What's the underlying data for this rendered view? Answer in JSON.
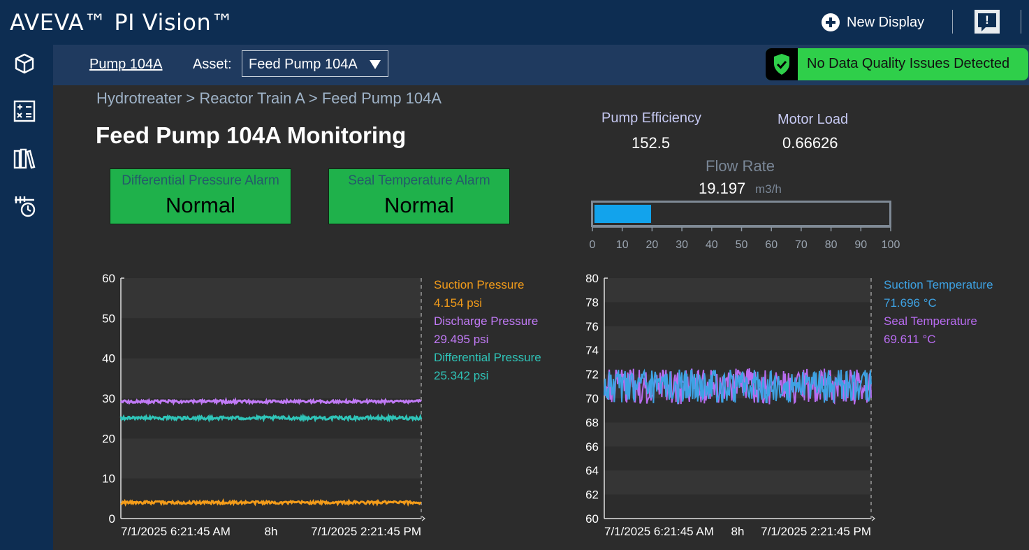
{
  "app": {
    "brand": "AVEVA™ PI Vision™",
    "new_display": "New Display"
  },
  "sidebar": {
    "items": [
      "cube-icon",
      "calculator-icon",
      "library-icon",
      "event-frame-icon"
    ]
  },
  "subbar": {
    "tab": "Pump 104A",
    "asset_label": "Asset:",
    "asset_value": "Feed Pump 104A",
    "data_quality": "No Data Quality Issues Detected"
  },
  "display": {
    "breadcrumb": "Hydrotreater > Reactor Train A > Feed Pump 104A",
    "title": "Feed Pump 104A Monitoring",
    "alarms": [
      {
        "label": "Differential Pressure Alarm",
        "value": "Normal"
      },
      {
        "label": "Seal Temperature Alarm",
        "value": "Normal"
      }
    ],
    "kpis": {
      "efficiency_label": "Pump Efficiency",
      "efficiency_value": "152.5",
      "motor_label": "Motor Load",
      "motor_value": "0.66626",
      "flow_label": "Flow Rate",
      "flow_value": "19.197",
      "flow_unit": "m3/h"
    },
    "flow_gauge": {
      "value": 19.197,
      "min": 0,
      "max": 100,
      "ticks": [
        "0",
        "10",
        "20",
        "30",
        "40",
        "50",
        "60",
        "70",
        "80",
        "90",
        "100"
      ]
    },
    "trend1": {
      "legend": [
        {
          "name": "Suction Pressure",
          "value": "4.154 psi",
          "color": "#f39c1a"
        },
        {
          "name": "Discharge Pressure",
          "value": "29.495 psi",
          "color": "#c07af5"
        },
        {
          "name": "Differential Pressure",
          "value": "25.342 psi",
          "color": "#2fc4b8"
        }
      ],
      "time_start": "7/1/2025 6:21:45 AM",
      "duration": "8h",
      "time_end": "7/1/2025 2:21:45 PM"
    },
    "trend2": {
      "legend": [
        {
          "name": "Suction Temperature",
          "value": "71.696 °C",
          "color": "#3ea2e3"
        },
        {
          "name": "Seal Temperature",
          "value": "69.611 °C",
          "color": "#b86cf0"
        }
      ],
      "time_start": "7/1/2025 6:21:45 AM",
      "duration": "8h",
      "time_end": "7/1/2025 2:21:45 PM"
    }
  },
  "chart_data": [
    {
      "type": "line",
      "ylim": [
        0,
        60
      ],
      "yticks": [
        0,
        10,
        20,
        30,
        40,
        50,
        60
      ],
      "series": [
        {
          "name": "Suction Pressure",
          "mean": 4.0,
          "noise": 0.35,
          "color": "#f39c1a"
        },
        {
          "name": "Discharge Pressure",
          "mean": 29.2,
          "noise": 0.35,
          "color": "#c07af5"
        },
        {
          "name": "Differential Pressure",
          "mean": 25.1,
          "noise": 0.4,
          "color": "#2fc4b8"
        }
      ]
    },
    {
      "type": "line",
      "ylim": [
        60,
        80
      ],
      "yticks": [
        60,
        62,
        64,
        66,
        68,
        70,
        72,
        74,
        76,
        78,
        80
      ],
      "series": [
        {
          "name": "Seal Temperature",
          "mean": 71.0,
          "noise": 1.5,
          "color": "#b86cf0"
        },
        {
          "name": "Suction Temperature",
          "mean": 71.0,
          "noise": 1.4,
          "color": "#3ea2e3"
        }
      ]
    }
  ]
}
